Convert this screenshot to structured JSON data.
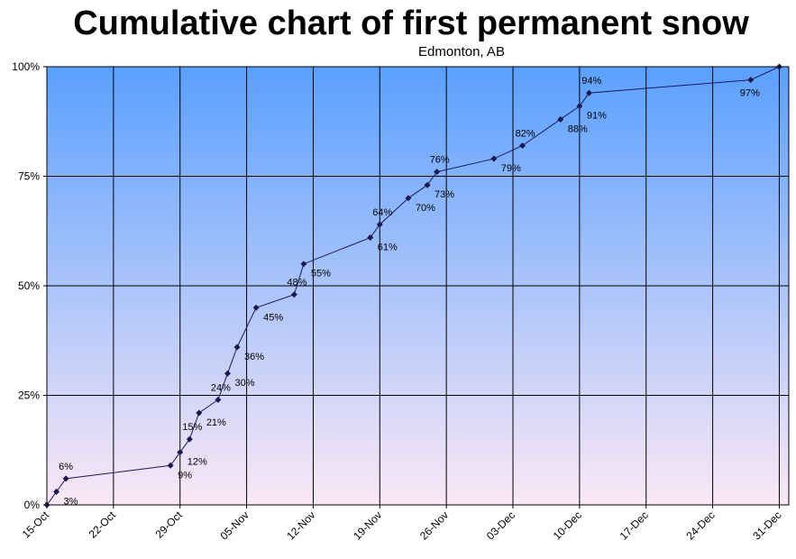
{
  "chart_data": {
    "type": "line",
    "title": "Cumulative chart of first permanent snow",
    "subtitle": "Edmonton, AB",
    "xlabel": "",
    "ylabel": "",
    "x_tick_labels": [
      "15-Oct",
      "22-Oct",
      "29-Oct",
      "05-Nov",
      "12-Nov",
      "19-Nov",
      "26-Nov",
      "03-Dec",
      "10-Dec",
      "17-Dec",
      "24-Dec",
      "31-Dec"
    ],
    "y_tick_labels": [
      "0%",
      "25%",
      "50%",
      "75%",
      "100%"
    ],
    "ylim": [
      0,
      100
    ],
    "xlim": [
      "15-Oct",
      "01-Jan"
    ],
    "grid": true,
    "background_top": "#5aa0ff",
    "background_bottom": "#fbe8f5",
    "line_color": "#1a1a60",
    "marker_color": "#1a1a50",
    "series": [
      {
        "x": [
          "15-Oct",
          "16-Oct",
          "17-Oct",
          "28-Oct",
          "29-Oct",
          "30-Oct",
          "31-Oct",
          "02-Nov",
          "03-Nov",
          "04-Nov",
          "06-Nov",
          "10-Nov",
          "11-Nov",
          "18-Nov",
          "19-Nov",
          "22-Nov",
          "24-Nov",
          "25-Nov",
          "01-Dec",
          "04-Dec",
          "08-Dec",
          "10-Dec",
          "11-Dec",
          "28-Dec",
          "31-Dec"
        ],
        "values": [
          0,
          3,
          6,
          9,
          12,
          15,
          21,
          24,
          30,
          36,
          45,
          48,
          55,
          61,
          64,
          70,
          73,
          76,
          79,
          82,
          88,
          91,
          94,
          97,
          100
        ],
        "labels": [
          "",
          "3%",
          "6%",
          "9%",
          "12%",
          "15%",
          "21%",
          "24%",
          "30%",
          "36%",
          "45%",
          "48%",
          "55%",
          "61%",
          "64%",
          "70%",
          "73%",
          "76%",
          "79%",
          "82%",
          "88%",
          "91%",
          "94%",
          "97%",
          ""
        ]
      }
    ]
  }
}
